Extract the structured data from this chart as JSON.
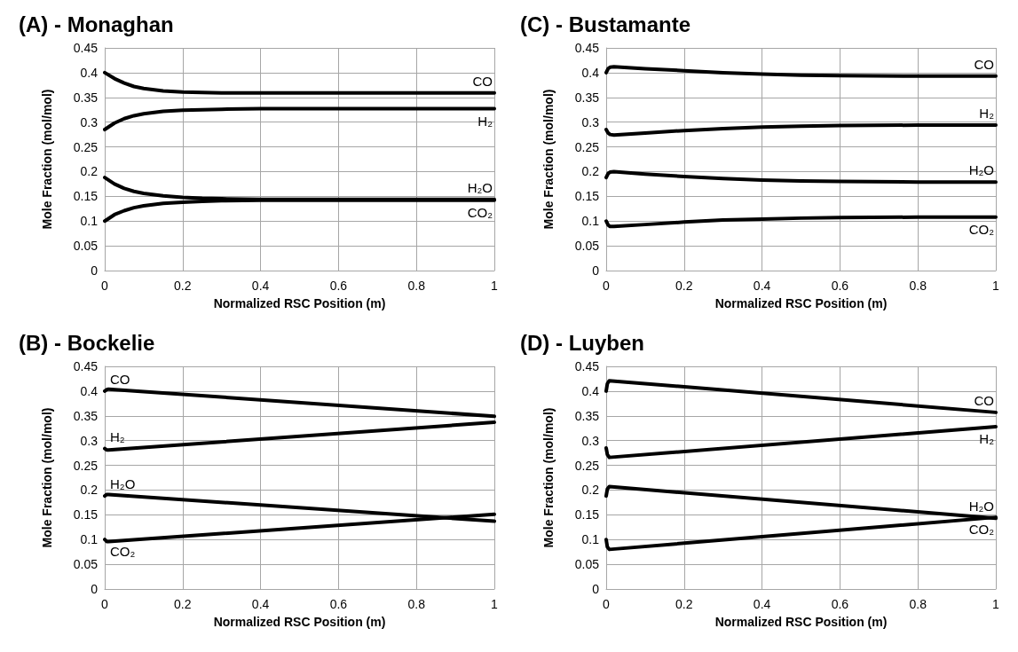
{
  "chart_data": [
    {
      "type": "line",
      "title": "(A) - Monaghan",
      "xlabel": "Normalized RSC Position (m)",
      "ylabel": "Mole Fraction (mol/mol)",
      "xlim": [
        0,
        1
      ],
      "xticks": [
        0,
        0.2,
        0.4,
        0.6,
        0.8,
        1
      ],
      "ylim": [
        0,
        0.45
      ],
      "yticks": [
        0,
        0.05,
        0.1,
        0.15,
        0.2,
        0.25,
        0.3,
        0.35,
        0.4,
        0.45
      ],
      "grid": true,
      "legend": false,
      "marker": "none",
      "line_style": "solid",
      "x": [
        0,
        0.025,
        0.05,
        0.075,
        0.1,
        0.15,
        0.2,
        0.25,
        0.3,
        0.4,
        0.5,
        0.6,
        0.8,
        1
      ],
      "series": [
        {
          "name": "CO",
          "color": "#000000",
          "values": [
            0.4,
            0.388,
            0.379,
            0.372,
            0.368,
            0.363,
            0.361,
            0.36,
            0.359,
            0.359,
            0.359,
            0.359,
            0.359,
            0.359
          ]
        },
        {
          "name": "H₂",
          "color": "#000000",
          "values": [
            0.285,
            0.298,
            0.307,
            0.313,
            0.317,
            0.322,
            0.324,
            0.325,
            0.326,
            0.327,
            0.327,
            0.327,
            0.327,
            0.327
          ]
        },
        {
          "name": "H₂O",
          "color": "#000000",
          "values": [
            0.188,
            0.175,
            0.166,
            0.16,
            0.156,
            0.151,
            0.148,
            0.146,
            0.145,
            0.144,
            0.144,
            0.144,
            0.144,
            0.144
          ]
        },
        {
          "name": "CO₂",
          "color": "#000000",
          "values": [
            0.1,
            0.113,
            0.121,
            0.127,
            0.131,
            0.136,
            0.138,
            0.14,
            0.141,
            0.142,
            0.142,
            0.142,
            0.142,
            0.142
          ]
        }
      ]
    },
    {
      "type": "line",
      "title": "(C) - Bustamante",
      "xlabel": "Normalized RSC Position (m)",
      "ylabel": "Mole Fraction (mol/mol)",
      "xlim": [
        0,
        1
      ],
      "xticks": [
        0,
        0.2,
        0.4,
        0.6,
        0.8,
        1
      ],
      "ylim": [
        0,
        0.45
      ],
      "yticks": [
        0,
        0.05,
        0.1,
        0.15,
        0.2,
        0.25,
        0.3,
        0.35,
        0.4,
        0.45
      ],
      "grid": true,
      "legend": false,
      "marker": "none",
      "line_style": "solid",
      "x": [
        0,
        0.005,
        0.01,
        0.02,
        0.1,
        0.2,
        0.3,
        0.4,
        0.5,
        0.6,
        0.8,
        1
      ],
      "series": [
        {
          "name": "CO",
          "color": "#000000",
          "values": [
            0.4,
            0.408,
            0.411,
            0.412,
            0.408,
            0.404,
            0.4,
            0.397,
            0.395,
            0.394,
            0.393,
            0.393
          ]
        },
        {
          "name": "H₂",
          "color": "#000000",
          "values": [
            0.285,
            0.278,
            0.275,
            0.274,
            0.278,
            0.283,
            0.287,
            0.29,
            0.292,
            0.293,
            0.294,
            0.294
          ]
        },
        {
          "name": "H₂O",
          "color": "#000000",
          "values": [
            0.188,
            0.196,
            0.199,
            0.2,
            0.195,
            0.19,
            0.186,
            0.183,
            0.181,
            0.18,
            0.179,
            0.179
          ]
        },
        {
          "name": "CO₂",
          "color": "#000000",
          "values": [
            0.1,
            0.092,
            0.089,
            0.089,
            0.093,
            0.098,
            0.102,
            0.104,
            0.106,
            0.107,
            0.108,
            0.108
          ]
        }
      ]
    },
    {
      "type": "line",
      "title": "(B) - Bockelie",
      "xlabel": "Normalized RSC Position (m)",
      "ylabel": "Mole Fraction (mol/mol)",
      "xlim": [
        0,
        1
      ],
      "xticks": [
        0,
        0.2,
        0.4,
        0.6,
        0.8,
        1
      ],
      "ylim": [
        0,
        0.45
      ],
      "yticks": [
        0,
        0.05,
        0.1,
        0.15,
        0.2,
        0.25,
        0.3,
        0.35,
        0.4,
        0.45
      ],
      "grid": true,
      "legend": false,
      "marker": "none",
      "line_style": "solid",
      "x": [
        0,
        0.005,
        0.01,
        1
      ],
      "series": [
        {
          "name": "CO",
          "color": "#000000",
          "values": [
            0.4,
            0.403,
            0.404,
            0.349
          ]
        },
        {
          "name": "H₂",
          "color": "#000000",
          "values": [
            0.284,
            0.281,
            0.281,
            0.337
          ]
        },
        {
          "name": "H₂O",
          "color": "#000000",
          "values": [
            0.188,
            0.191,
            0.191,
            0.137
          ]
        },
        {
          "name": "CO₂",
          "color": "#000000",
          "values": [
            0.1,
            0.096,
            0.096,
            0.151
          ]
        }
      ]
    },
    {
      "type": "line",
      "title": "(D) - Luyben",
      "xlabel": "Normalized RSC Position (m)",
      "ylabel": "Mole Fraction (mol/mol)",
      "xlim": [
        0,
        1
      ],
      "xticks": [
        0,
        0.2,
        0.4,
        0.6,
        0.8,
        1
      ],
      "ylim": [
        0,
        0.45
      ],
      "yticks": [
        0,
        0.05,
        0.1,
        0.15,
        0.2,
        0.25,
        0.3,
        0.35,
        0.4,
        0.45
      ],
      "grid": true,
      "legend": false,
      "marker": "none",
      "line_style": "solid",
      "x": [
        0,
        0.003,
        0.008,
        1
      ],
      "series": [
        {
          "name": "CO",
          "color": "#000000",
          "values": [
            0.4,
            0.415,
            0.421,
            0.357
          ]
        },
        {
          "name": "H₂",
          "color": "#000000",
          "values": [
            0.285,
            0.272,
            0.266,
            0.328
          ]
        },
        {
          "name": "H₂O",
          "color": "#000000",
          "values": [
            0.188,
            0.202,
            0.207,
            0.143
          ]
        },
        {
          "name": "CO₂",
          "color": "#000000",
          "values": [
            0.1,
            0.085,
            0.08,
            0.145
          ]
        }
      ]
    }
  ]
}
